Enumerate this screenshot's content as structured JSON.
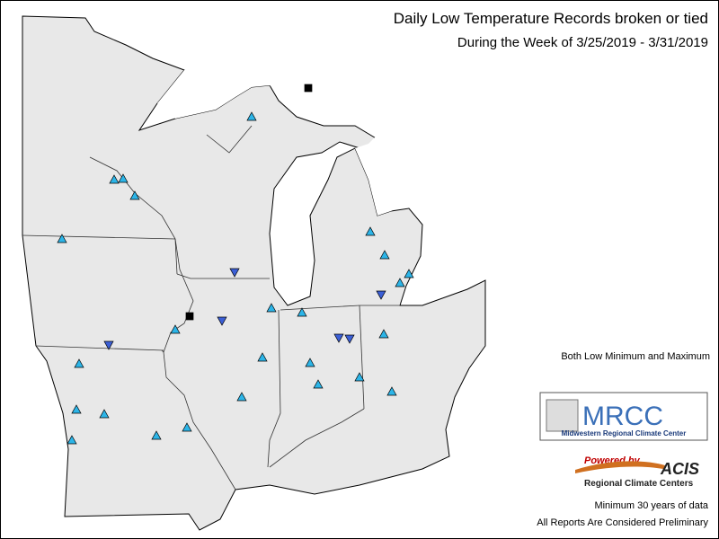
{
  "header": {
    "title": "Daily Low Temperature Records broken or tied",
    "subtitle": "During the Week of 3/25/2019 - 3/31/2019"
  },
  "legend": {
    "label": "Both Low Minimum and Maximum"
  },
  "logos": {
    "mrcc": "MRCC",
    "mrcc_name": "Midwestern Regional Climate Center",
    "powered_by": "Powered by",
    "acis": "ACIS",
    "acis_name": "Regional Climate Centers"
  },
  "footer": {
    "note": "Minimum 30 years of data",
    "disclaimer": "All Reports Are Considered Preliminary"
  }
}
